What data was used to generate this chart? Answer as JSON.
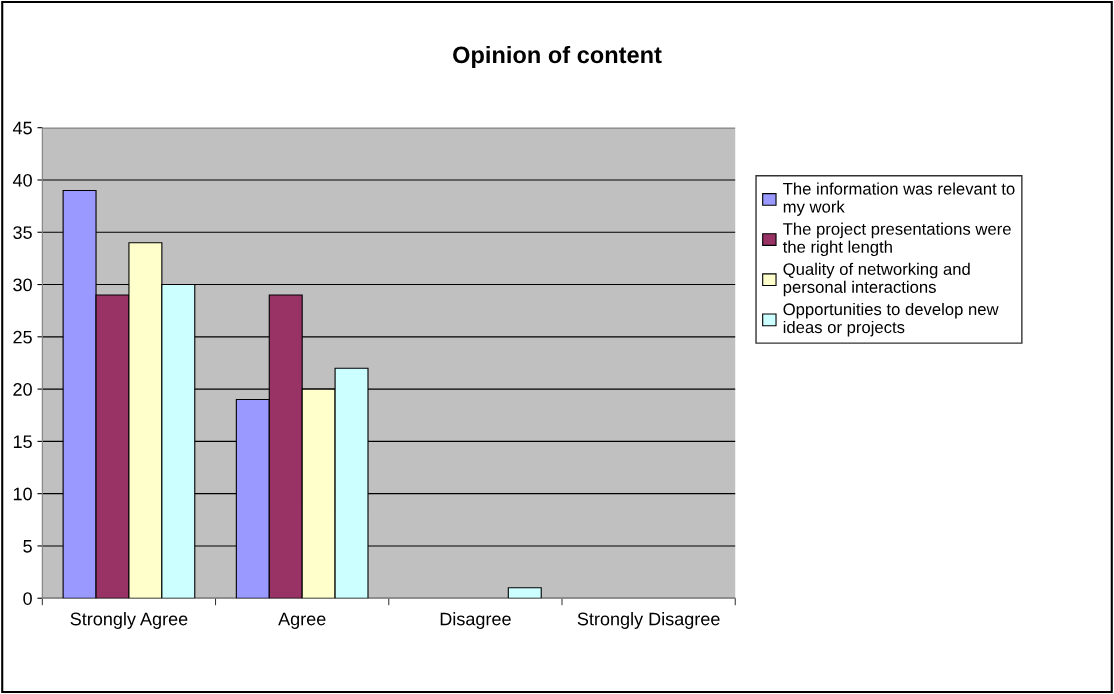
{
  "chart_data": {
    "type": "bar",
    "title": "Opinion of content",
    "categories": [
      "Strongly Agree",
      "Agree",
      "Disagree",
      "Strongly Disagree"
    ],
    "series": [
      {
        "name": "The information was relevant to\nmy work",
        "color": "#9999ff",
        "values": [
          39,
          19,
          0,
          0
        ]
      },
      {
        "name": "The project presentations were\nthe right length",
        "color": "#993366",
        "values": [
          29,
          29,
          0,
          0
        ]
      },
      {
        "name": "Quality of networking and\npersonal interactions",
        "color": "#ffffcc",
        "values": [
          34,
          20,
          0,
          0
        ]
      },
      {
        "name": "Opportunities to develop new\nideas or projects",
        "color": "#ccffff",
        "values": [
          30,
          22,
          1,
          0
        ]
      }
    ],
    "ylim": [
      0,
      45
    ],
    "yticks": [
      0,
      5,
      10,
      15,
      20,
      25,
      30,
      35,
      40,
      45
    ],
    "grid": "y",
    "legend": "right"
  }
}
